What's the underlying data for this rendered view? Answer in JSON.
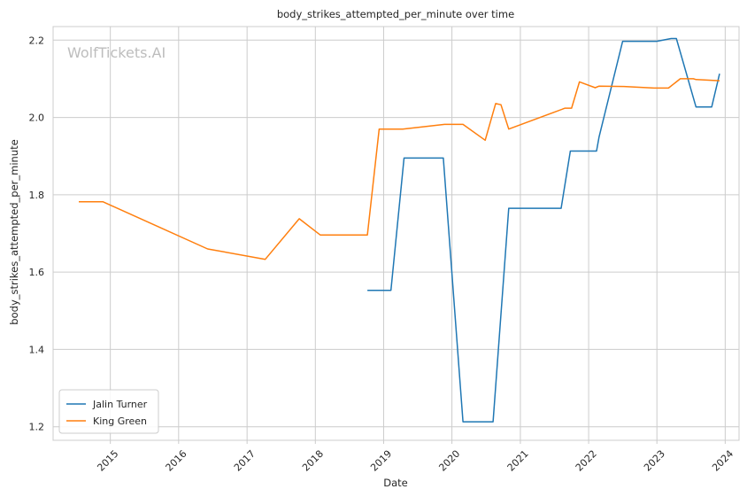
{
  "chart_data": {
    "type": "line",
    "title": "body_strikes_attempted_per_minute over time",
    "xlabel": "Date",
    "ylabel": "body_strikes_attempted_per_minute",
    "watermark": "WolfTickets.AI",
    "x_ticks": [
      "2015",
      "2016",
      "2017",
      "2018",
      "2019",
      "2020",
      "2021",
      "2022",
      "2023",
      "2024"
    ],
    "y_ticks": [
      "1.2",
      "1.4",
      "1.6",
      "1.8",
      "2.0",
      "2.2"
    ],
    "xlim": [
      "2014-03-01",
      "2024-03-15"
    ],
    "ylim": [
      1.165,
      2.235
    ],
    "grid": true,
    "legend_position": "lower-left",
    "series": [
      {
        "name": "Jalin Turner",
        "color": "#1f77b4",
        "points": [
          [
            "2018-10-06",
            1.553
          ],
          [
            "2019-02-09",
            1.553
          ],
          [
            "2019-04-20",
            1.895
          ],
          [
            "2019-11-16",
            1.895
          ],
          [
            "2020-02-29",
            1.213
          ],
          [
            "2020-08-08",
            1.213
          ],
          [
            "2020-10-31",
            1.765
          ],
          [
            "2021-08-07",
            1.765
          ],
          [
            "2021-09-25",
            1.913
          ],
          [
            "2022-02-12",
            1.913
          ],
          [
            "2022-02-26",
            1.95
          ],
          [
            "2022-07-02",
            2.197
          ],
          [
            "2022-12-31",
            2.197
          ],
          [
            "2023-03-18",
            2.204
          ],
          [
            "2023-04-15",
            2.204
          ],
          [
            "2023-07-29",
            2.027
          ],
          [
            "2023-10-21",
            2.027
          ],
          [
            "2023-12-02",
            2.113
          ]
        ]
      },
      {
        "name": "King Green",
        "color": "#ff7f0e",
        "points": [
          [
            "2014-07-16",
            1.782
          ],
          [
            "2014-11-22",
            1.782
          ],
          [
            "2016-06-04",
            1.66
          ],
          [
            "2017-04-08",
            1.633
          ],
          [
            "2017-10-07",
            1.738
          ],
          [
            "2018-01-27",
            1.696
          ],
          [
            "2018-10-06",
            1.696
          ],
          [
            "2018-12-08",
            1.97
          ],
          [
            "2019-04-13",
            1.97
          ],
          [
            "2019-11-23",
            1.982
          ],
          [
            "2020-02-29",
            1.982
          ],
          [
            "2020-06-27",
            1.941
          ],
          [
            "2020-08-22",
            2.036
          ],
          [
            "2020-09-19",
            2.033
          ],
          [
            "2020-10-31",
            1.97
          ],
          [
            "2021-08-28",
            2.024
          ],
          [
            "2021-10-02",
            2.024
          ],
          [
            "2021-11-13",
            2.092
          ],
          [
            "2022-02-05",
            2.077
          ],
          [
            "2022-02-26",
            2.081
          ],
          [
            "2022-07-09",
            2.08
          ],
          [
            "2022-12-17",
            2.076
          ],
          [
            "2023-03-04",
            2.076
          ],
          [
            "2023-05-06",
            2.1
          ],
          [
            "2023-07-15",
            2.1
          ],
          [
            "2023-07-29",
            2.098
          ],
          [
            "2023-12-02",
            2.095
          ]
        ]
      }
    ]
  }
}
